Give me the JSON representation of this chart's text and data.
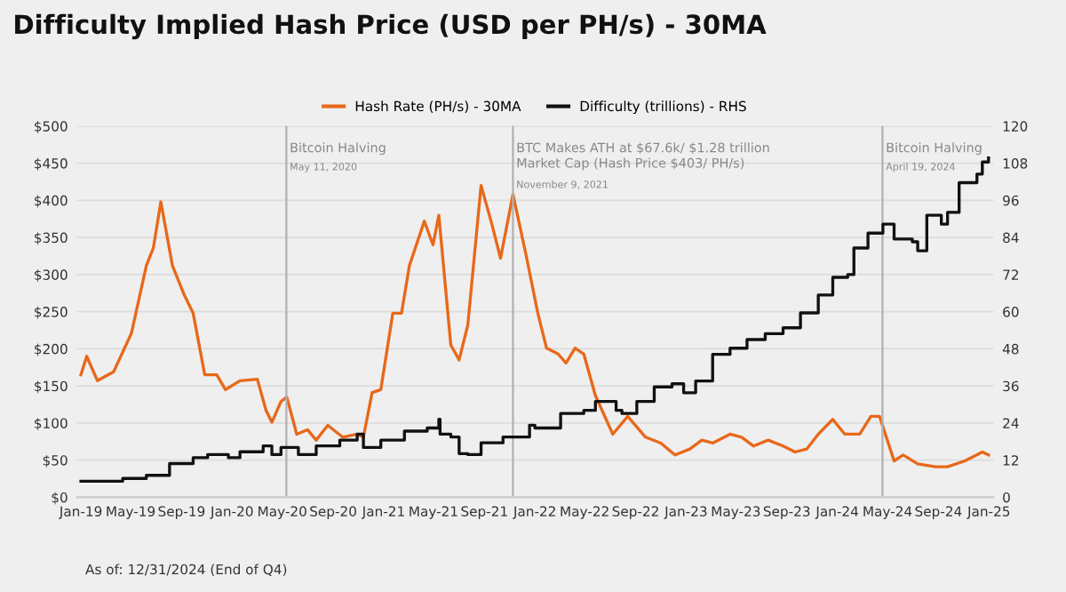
{
  "chart_data": {
    "type": "line",
    "title": "Difficulty Implied Hash Price (USD per PH/s) - 30MA",
    "annotations": [
      "As of: 12/31/2024 (End of Q4)"
    ],
    "legend": "top",
    "grid": "y",
    "xlim": [
      "2018-12-22",
      "2025-01-12"
    ],
    "xticks": [
      {
        "value": "2019-01-01",
        "label": "Jan-19"
      },
      {
        "value": "2019-05-01",
        "label": "May-19"
      },
      {
        "value": "2019-09-01",
        "label": "Sep-19"
      },
      {
        "value": "2020-01-01",
        "label": "Jan-20"
      },
      {
        "value": "2020-05-01",
        "label": "May-20"
      },
      {
        "value": "2020-09-01",
        "label": "Sep-20"
      },
      {
        "value": "2021-01-01",
        "label": "Jan-21"
      },
      {
        "value": "2021-05-01",
        "label": "May-21"
      },
      {
        "value": "2021-09-01",
        "label": "Sep-21"
      },
      {
        "value": "2022-01-01",
        "label": "Jan-22"
      },
      {
        "value": "2022-05-01",
        "label": "May-22"
      },
      {
        "value": "2022-09-01",
        "label": "Sep-22"
      },
      {
        "value": "2023-01-01",
        "label": "Jan-23"
      },
      {
        "value": "2023-05-01",
        "label": "May-23"
      },
      {
        "value": "2023-09-01",
        "label": "Sep-23"
      },
      {
        "value": "2024-01-01",
        "label": "Jan-24"
      },
      {
        "value": "2024-05-01",
        "label": "May-24"
      },
      {
        "value": "2024-09-01",
        "label": "Sep-24"
      },
      {
        "value": "2025-01-01",
        "label": "Jan-25"
      }
    ],
    "ylim": [
      0,
      500
    ],
    "yticks": [
      {
        "value": 0,
        "label": "$0"
      },
      {
        "value": 50,
        "label": "$50"
      },
      {
        "value": 100,
        "label": "$100"
      },
      {
        "value": 150,
        "label": "$150"
      },
      {
        "value": 200,
        "label": "$200"
      },
      {
        "value": 250,
        "label": "$250"
      },
      {
        "value": 300,
        "label": "$300"
      },
      {
        "value": 350,
        "label": "$350"
      },
      {
        "value": 400,
        "label": "$400"
      },
      {
        "value": 450,
        "label": "$450"
      },
      {
        "value": 500,
        "label": "$500"
      }
    ],
    "y2lim": [
      0,
      120
    ],
    "y2ticks": [
      0,
      12,
      24,
      36,
      48,
      60,
      72,
      84,
      96,
      108,
      120
    ],
    "ref_lines": [
      {
        "axis": "x",
        "value": "2020-05-11",
        "label": "Bitcoin Halving\nMay 11, 2020",
        "color": "#b0b0b0"
      },
      {
        "axis": "x",
        "value": "2021-11-09",
        "label": "BTC Makes ATH at $67.6k/ $1.28 trillion\nMarket Cap (Hash Price $403/ PH/s)\nNovember 9, 2021",
        "color": "#b0b0b0"
      },
      {
        "axis": "x",
        "value": "2024-04-19",
        "label": "Bitcoin Halving\nApril 19, 2024",
        "color": "#b0b0b0"
      }
    ],
    "series": [
      {
        "name": "Hash Rate (PH/s) - 30MA",
        "color": "#e8681a",
        "x": [
          "2019-01-01",
          "2019-01-15",
          "2019-02-10",
          "2019-03-21",
          "2019-05-03",
          "2019-06-08",
          "2019-06-25",
          "2019-07-13",
          "2019-08-10",
          "2019-09-08",
          "2019-09-29",
          "2019-10-27",
          "2019-11-25",
          "2019-12-16",
          "2020-01-20",
          "2020-03-02",
          "2020-03-23",
          "2020-04-06",
          "2020-04-28",
          "2020-05-12",
          "2020-06-05",
          "2020-07-01",
          "2020-07-22",
          "2020-08-19",
          "2020-09-24",
          "2020-10-29",
          "2020-11-13",
          "2020-12-04",
          "2020-12-25",
          "2021-01-23",
          "2021-02-13",
          "2021-03-04",
          "2021-04-09",
          "2021-04-30",
          "2021-05-14",
          "2021-06-12",
          "2021-07-02",
          "2021-07-23",
          "2021-08-24",
          "2021-09-19",
          "2021-10-10",
          "2021-11-09",
          "2021-12-10",
          "2022-01-08",
          "2022-01-29",
          "2022-02-26",
          "2022-03-17",
          "2022-04-08",
          "2022-04-29",
          "2022-05-27",
          "2022-07-08",
          "2022-08-13",
          "2022-09-25",
          "2022-11-01",
          "2022-12-05",
          "2023-01-10",
          "2023-02-08",
          "2023-03-06",
          "2023-04-17",
          "2023-05-15",
          "2023-06-13",
          "2023-07-18",
          "2023-08-23",
          "2023-09-21",
          "2023-10-19",
          "2023-11-16",
          "2023-12-21",
          "2024-01-19",
          "2024-02-24",
          "2024-03-22",
          "2024-04-12",
          "2024-05-17",
          "2024-06-08",
          "2024-07-13",
          "2024-08-25",
          "2024-09-23",
          "2024-11-04",
          "2024-12-16",
          "2024-12-31"
        ],
        "values": [
          165,
          190,
          157,
          169,
          221,
          312,
          336,
          398,
          312,
          272,
          248,
          165,
          165,
          145,
          157,
          159,
          117,
          101,
          129,
          135,
          85,
          91,
          77,
          97,
          81,
          85,
          81,
          141,
          145,
          248,
          248,
          312,
          372,
          340,
          380,
          205,
          185,
          232,
          420,
          368,
          322,
          408,
          328,
          248,
          201,
          193,
          181,
          201,
          193,
          137,
          85,
          109,
          81,
          73,
          57,
          65,
          77,
          73,
          85,
          81,
          69,
          77,
          69,
          61,
          65,
          85,
          105,
          85,
          85,
          109,
          109,
          49,
          57,
          45,
          41,
          41,
          49,
          61,
          57
        ]
      },
      {
        "name": "Difficulty (trillions) - RHS",
        "type": "step",
        "axis": "y2",
        "color": "#111111",
        "x": [
          "2019-01-01",
          "2019-04-12",
          "2019-06-08",
          "2019-08-03",
          "2019-09-29",
          "2019-11-03",
          "2019-12-23",
          "2020-01-20",
          "2020-03-16",
          "2020-04-06",
          "2020-04-28",
          "2020-06-09",
          "2020-07-22",
          "2020-09-17",
          "2020-10-29",
          "2020-11-13",
          "2020-12-25",
          "2021-02-20",
          "2021-04-16",
          "2021-05-14",
          "2021-05-17",
          "2021-06-12",
          "2021-07-02",
          "2021-07-23",
          "2021-08-24",
          "2021-10-16",
          "2021-12-19",
          "2022-01-01",
          "2022-03-04",
          "2022-04-29",
          "2022-05-27",
          "2022-07-16",
          "2022-07-30",
          "2022-09-04",
          "2022-10-16",
          "2022-11-28",
          "2022-12-26",
          "2023-01-24",
          "2023-03-06",
          "2023-04-17",
          "2023-05-28",
          "2023-07-11",
          "2023-08-23",
          "2023-10-04",
          "2023-11-16",
          "2023-12-21",
          "2024-01-26",
          "2024-02-10",
          "2024-03-15",
          "2024-04-20",
          "2024-05-17",
          "2024-06-30",
          "2024-07-13",
          "2024-08-04",
          "2024-09-08",
          "2024-09-23",
          "2024-10-21",
          "2024-12-03",
          "2024-12-16",
          "2024-12-31"
        ],
        "values": [
          5.2,
          6.1,
          7.1,
          10.9,
          12.8,
          13.8,
          12.8,
          14.7,
          16.6,
          13.8,
          16.1,
          13.8,
          16.6,
          18.5,
          20.4,
          16.1,
          18.5,
          21.4,
          22.4,
          25.2,
          20.4,
          19.5,
          14.1,
          13.8,
          17.6,
          19.5,
          23.3,
          22.4,
          27.1,
          28.1,
          31.0,
          28.1,
          27.1,
          31.0,
          35.7,
          36.7,
          33.8,
          37.6,
          46.2,
          48.2,
          51.0,
          52.9,
          54.8,
          59.6,
          65.4,
          71.1,
          72.0,
          80.6,
          85.4,
          88.3,
          83.5,
          82.6,
          79.7,
          91.2,
          88.3,
          92.1,
          101.7,
          104.5,
          108.4,
          109.7
        ]
      }
    ]
  }
}
